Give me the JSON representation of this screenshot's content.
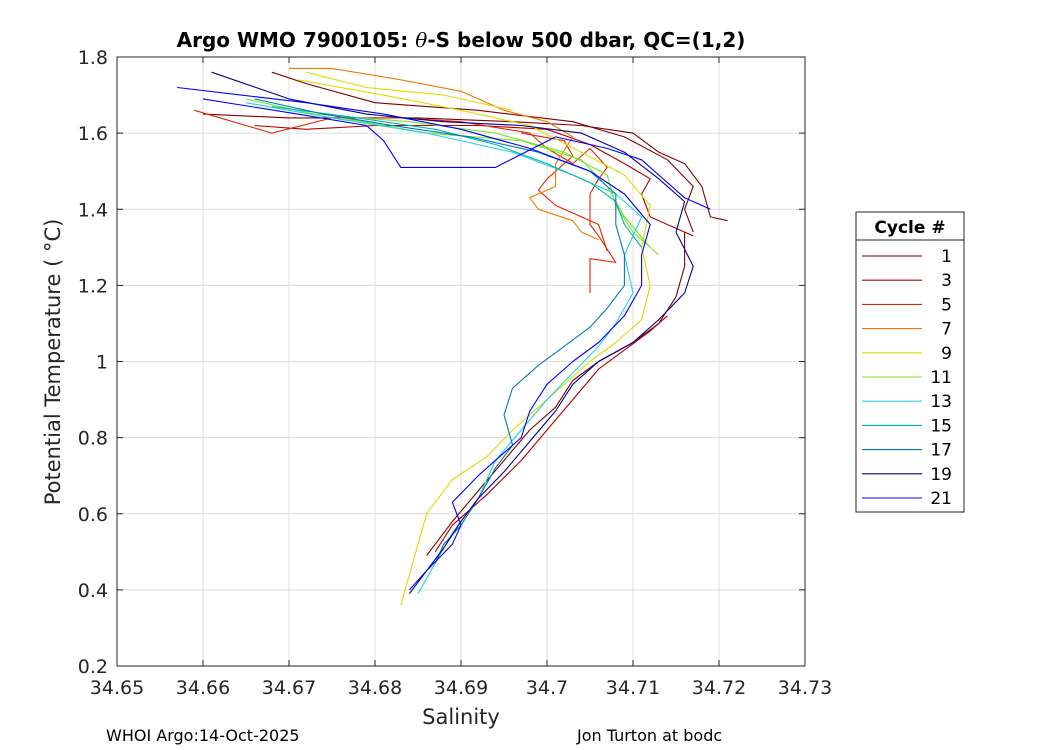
{
  "chart_data": {
    "type": "line",
    "title": "Argo WMO 7900105: θ-S below 500 dbar,  QC=(1,2)",
    "title_parts": {
      "prefix": "Argo WMO 7900105: ",
      "theta": "θ",
      "suffix": "-S below 500 dbar,  QC=(1,2)"
    },
    "xlabel": "Salinity",
    "ylabel": "Potential Temperature ( °C)",
    "xlim": [
      34.65,
      34.73
    ],
    "ylim": [
      0.2,
      1.8
    ],
    "xticks": [
      34.65,
      34.66,
      34.67,
      34.68,
      34.69,
      34.7,
      34.71,
      34.72,
      34.73
    ],
    "xtick_labels": [
      "34.65",
      "34.66",
      "34.67",
      "34.68",
      "34.69",
      "34.7",
      "34.71",
      "34.72",
      "34.73"
    ],
    "yticks": [
      0.2,
      0.4,
      0.6,
      0.8,
      1.0,
      1.2,
      1.4,
      1.6,
      1.8
    ],
    "ytick_labels": [
      "0.2",
      "0.4",
      "0.6",
      "0.8",
      "1",
      "1.2",
      "1.4",
      "1.6",
      "1.8"
    ],
    "grid": true,
    "legend": {
      "title": "Cycle #",
      "placement": "right"
    },
    "series": [
      {
        "name": "1",
        "color": "#800000",
        "points": [
          [
            34.721,
            1.37
          ],
          [
            34.719,
            1.38
          ],
          [
            34.718,
            1.46
          ],
          [
            34.716,
            1.52
          ],
          [
            34.713,
            1.55
          ],
          [
            34.71,
            1.6
          ],
          [
            34.704,
            1.62
          ],
          [
            34.696,
            1.63
          ],
          [
            34.685,
            1.64
          ],
          [
            34.67,
            1.64
          ],
          [
            34.66,
            1.65
          ]
        ]
      },
      {
        "name": "1",
        "color": "#800000",
        "points": [
          [
            34.717,
            1.34
          ],
          [
            34.716,
            1.4
          ],
          [
            34.717,
            1.46
          ],
          [
            34.714,
            1.53
          ],
          [
            34.709,
            1.59
          ],
          [
            34.703,
            1.63
          ],
          [
            34.692,
            1.66
          ],
          [
            34.68,
            1.68
          ],
          [
            34.672,
            1.73
          ],
          [
            34.668,
            1.76
          ]
        ]
      },
      {
        "name": "1",
        "color": "#800000",
        "points": [
          [
            34.686,
            0.49
          ],
          [
            34.689,
            0.58
          ],
          [
            34.692,
            0.66
          ],
          [
            34.695,
            0.74
          ],
          [
            34.698,
            0.82
          ],
          [
            34.701,
            0.88
          ],
          [
            34.703,
            0.95
          ],
          [
            34.706,
            1.0
          ],
          [
            34.71,
            1.05
          ],
          [
            34.713,
            1.1
          ],
          [
            34.715,
            1.17
          ],
          [
            34.716,
            1.25
          ],
          [
            34.716,
            1.34
          ]
        ]
      },
      {
        "name": "3",
        "color": "#b40000",
        "points": [
          [
            34.717,
            1.33
          ],
          [
            34.714,
            1.36
          ],
          [
            34.712,
            1.38
          ],
          [
            34.711,
            1.44
          ],
          [
            34.712,
            1.48
          ],
          [
            34.709,
            1.52
          ],
          [
            34.705,
            1.57
          ],
          [
            34.7,
            1.61
          ],
          [
            34.692,
            1.62
          ],
          [
            34.68,
            1.62
          ],
          [
            34.672,
            1.61
          ],
          [
            34.666,
            1.62
          ]
        ]
      },
      {
        "name": "3",
        "color": "#b40000",
        "points": [
          [
            34.687,
            0.5
          ],
          [
            34.689,
            0.57
          ],
          [
            34.693,
            0.65
          ],
          [
            34.697,
            0.74
          ],
          [
            34.7,
            0.82
          ],
          [
            34.703,
            0.9
          ],
          [
            34.706,
            0.98
          ],
          [
            34.709,
            1.03
          ],
          [
            34.712,
            1.08
          ],
          [
            34.714,
            1.12
          ]
        ]
      },
      {
        "name": "5",
        "color": "#dc2800",
        "points": [
          [
            34.705,
            1.18
          ],
          [
            34.705,
            1.27
          ],
          [
            34.708,
            1.26
          ],
          [
            34.706,
            1.33
          ],
          [
            34.705,
            1.36
          ],
          [
            34.705,
            1.44
          ],
          [
            34.706,
            1.48
          ],
          [
            34.707,
            1.51
          ],
          [
            34.705,
            1.56
          ],
          [
            34.703,
            1.52
          ],
          [
            34.7,
            1.56
          ],
          [
            34.698,
            1.6
          ],
          [
            34.69,
            1.63
          ],
          [
            34.683,
            1.64
          ],
          [
            34.675,
            1.64
          ],
          [
            34.668,
            1.6
          ],
          [
            34.659,
            1.66
          ]
        ]
      },
      {
        "name": "5",
        "color": "#dc2800",
        "points": [
          [
            34.707,
            1.29
          ],
          [
            34.706,
            1.36
          ],
          [
            34.704,
            1.38
          ],
          [
            34.701,
            1.41
          ],
          [
            34.699,
            1.45
          ],
          [
            34.7,
            1.48
          ],
          [
            34.703,
            1.54
          ],
          [
            34.702,
            1.58
          ],
          [
            34.697,
            1.6
          ]
        ]
      },
      {
        "name": "7",
        "color": "#f07800",
        "points": [
          [
            34.706,
            1.32
          ],
          [
            34.704,
            1.34
          ],
          [
            34.703,
            1.37
          ],
          [
            34.699,
            1.4
          ],
          [
            34.698,
            1.43
          ],
          [
            34.701,
            1.46
          ],
          [
            34.701,
            1.52
          ],
          [
            34.703,
            1.59
          ],
          [
            34.7,
            1.63
          ],
          [
            34.695,
            1.66
          ],
          [
            34.69,
            1.71
          ],
          [
            34.683,
            1.74
          ],
          [
            34.675,
            1.77
          ],
          [
            34.67,
            1.77
          ]
        ]
      },
      {
        "name": "9",
        "color": "#dcdc00",
        "points": [
          [
            34.683,
            0.36
          ],
          [
            34.684,
            0.44
          ],
          [
            34.685,
            0.52
          ],
          [
            34.686,
            0.6
          ],
          [
            34.689,
            0.69
          ],
          [
            34.693,
            0.75
          ],
          [
            34.696,
            0.82
          ],
          [
            34.699,
            0.88
          ],
          [
            34.702,
            0.94
          ],
          [
            34.705,
            1.0
          ],
          [
            34.708,
            1.05
          ],
          [
            34.711,
            1.11
          ],
          [
            34.712,
            1.2
          ],
          [
            34.711,
            1.3
          ],
          [
            34.712,
            1.41
          ],
          [
            34.709,
            1.49
          ],
          [
            34.704,
            1.55
          ],
          [
            34.698,
            1.62
          ],
          [
            34.69,
            1.66
          ],
          [
            34.681,
            1.7
          ],
          [
            34.671,
            1.74
          ]
        ]
      },
      {
        "name": "9",
        "color": "#dcdc00",
        "points": [
          [
            34.696,
            1.66
          ],
          [
            34.688,
            1.7
          ],
          [
            34.679,
            1.72
          ],
          [
            34.672,
            1.76
          ]
        ]
      },
      {
        "name": "11",
        "color": "#78e628",
        "points": [
          [
            34.713,
            1.28
          ],
          [
            34.71,
            1.34
          ],
          [
            34.708,
            1.41
          ],
          [
            34.707,
            1.49
          ],
          [
            34.702,
            1.55
          ],
          [
            34.694,
            1.6
          ],
          [
            34.684,
            1.63
          ],
          [
            34.673,
            1.65
          ],
          [
            34.665,
            1.69
          ]
        ]
      },
      {
        "name": "11",
        "color": "#78e628",
        "points": [
          [
            34.712,
            1.3
          ],
          [
            34.709,
            1.38
          ],
          [
            34.707,
            1.46
          ],
          [
            34.704,
            1.53
          ],
          [
            34.697,
            1.58
          ],
          [
            34.686,
            1.6
          ],
          [
            34.676,
            1.64
          ]
        ]
      },
      {
        "name": "13",
        "color": "#28d2dc",
        "points": [
          [
            34.685,
            0.39
          ],
          [
            34.687,
            0.47
          ],
          [
            34.689,
            0.55
          ],
          [
            34.692,
            0.64
          ],
          [
            34.694,
            0.74
          ],
          [
            34.697,
            0.82
          ],
          [
            34.7,
            0.9
          ],
          [
            34.703,
            0.97
          ],
          [
            34.706,
            1.04
          ],
          [
            34.708,
            1.1
          ],
          [
            34.71,
            1.18
          ],
          [
            34.709,
            1.28
          ],
          [
            34.711,
            1.38
          ],
          [
            34.708,
            1.44
          ],
          [
            34.703,
            1.49
          ],
          [
            34.696,
            1.55
          ],
          [
            34.686,
            1.6
          ],
          [
            34.675,
            1.64
          ],
          [
            34.665,
            1.68
          ]
        ]
      },
      {
        "name": "15",
        "color": "#00b4b4",
        "points": [
          [
            34.711,
            1.3
          ],
          [
            34.709,
            1.36
          ],
          [
            34.708,
            1.42
          ],
          [
            34.705,
            1.47
          ],
          [
            34.7,
            1.52
          ],
          [
            34.694,
            1.57
          ],
          [
            34.687,
            1.61
          ],
          [
            34.678,
            1.64
          ],
          [
            34.668,
            1.67
          ]
        ]
      },
      {
        "name": "17",
        "color": "#0078be",
        "points": [
          [
            34.687,
            0.47
          ],
          [
            34.688,
            0.52
          ],
          [
            34.69,
            0.57
          ],
          [
            34.692,
            0.64
          ],
          [
            34.694,
            0.72
          ],
          [
            34.696,
            0.78
          ],
          [
            34.695,
            0.86
          ],
          [
            34.696,
            0.93
          ],
          [
            34.699,
            0.99
          ],
          [
            34.702,
            1.04
          ],
          [
            34.705,
            1.09
          ],
          [
            34.707,
            1.14
          ],
          [
            34.709,
            1.2
          ],
          [
            34.709,
            1.28
          ],
          [
            34.708,
            1.36
          ],
          [
            34.708,
            1.44
          ],
          [
            34.705,
            1.5
          ],
          [
            34.699,
            1.55
          ],
          [
            34.691,
            1.59
          ],
          [
            34.682,
            1.62
          ],
          [
            34.674,
            1.65
          ],
          [
            34.666,
            1.69
          ]
        ]
      },
      {
        "name": "19",
        "color": "#00008c",
        "points": [
          [
            34.684,
            0.39
          ],
          [
            34.686,
            0.45
          ],
          [
            34.688,
            0.51
          ],
          [
            34.69,
            0.58
          ],
          [
            34.692,
            0.64
          ],
          [
            34.695,
            0.71
          ],
          [
            34.698,
            0.79
          ],
          [
            34.701,
            0.87
          ],
          [
            34.703,
            0.94
          ],
          [
            34.706,
            1.0
          ],
          [
            34.71,
            1.05
          ],
          [
            34.713,
            1.11
          ],
          [
            34.716,
            1.18
          ],
          [
            34.717,
            1.25
          ],
          [
            34.715,
            1.34
          ],
          [
            34.716,
            1.42
          ],
          [
            34.713,
            1.48
          ],
          [
            34.709,
            1.55
          ],
          [
            34.704,
            1.6
          ],
          [
            34.697,
            1.62
          ],
          [
            34.688,
            1.63
          ],
          [
            34.679,
            1.65
          ],
          [
            34.67,
            1.69
          ],
          [
            34.661,
            1.76
          ]
        ]
      },
      {
        "name": "21",
        "color": "#0000ff",
        "points": [
          [
            34.719,
            1.4
          ],
          [
            34.716,
            1.43
          ],
          [
            34.713,
            1.49
          ],
          [
            34.711,
            1.53
          ],
          [
            34.707,
            1.56
          ],
          [
            34.701,
            1.59
          ],
          [
            34.694,
            1.51
          ],
          [
            34.683,
            1.51
          ],
          [
            34.681,
            1.58
          ],
          [
            34.679,
            1.62
          ],
          [
            34.671,
            1.65
          ],
          [
            34.66,
            1.69
          ]
        ]
      },
      {
        "name": "21",
        "color": "#0000ff",
        "points": [
          [
            34.684,
            0.4
          ],
          [
            34.686,
            0.45
          ],
          [
            34.689,
            0.52
          ],
          [
            34.69,
            0.57
          ],
          [
            34.689,
            0.63
          ],
          [
            34.692,
            0.7
          ],
          [
            34.695,
            0.76
          ],
          [
            34.697,
            0.8
          ],
          [
            34.698,
            0.87
          ],
          [
            34.7,
            0.94
          ],
          [
            34.703,
            1.0
          ],
          [
            34.706,
            1.05
          ],
          [
            34.709,
            1.12
          ],
          [
            34.711,
            1.2
          ],
          [
            34.711,
            1.28
          ],
          [
            34.712,
            1.36
          ],
          [
            34.709,
            1.44
          ],
          [
            34.705,
            1.5
          ],
          [
            34.698,
            1.56
          ],
          [
            34.69,
            1.61
          ],
          [
            34.681,
            1.65
          ],
          [
            34.672,
            1.68
          ],
          [
            34.657,
            1.72
          ]
        ]
      }
    ],
    "legend_entries": [
      {
        "label": "1",
        "color": "#800000"
      },
      {
        "label": "3",
        "color": "#b40000"
      },
      {
        "label": "5",
        "color": "#dc2800"
      },
      {
        "label": "7",
        "color": "#f07800"
      },
      {
        "label": "9",
        "color": "#dcdc00"
      },
      {
        "label": "11",
        "color": "#78e628"
      },
      {
        "label": "13",
        "color": "#28d2dc"
      },
      {
        "label": "15",
        "color": "#00b4b4"
      },
      {
        "label": "17",
        "color": "#0078be"
      },
      {
        "label": "19",
        "color": "#00008c"
      },
      {
        "label": "21",
        "color": "#0000ff"
      }
    ]
  },
  "footer": {
    "left": "WHOI Argo:14-Oct-2025",
    "right": "Jon Turton at bodc"
  }
}
